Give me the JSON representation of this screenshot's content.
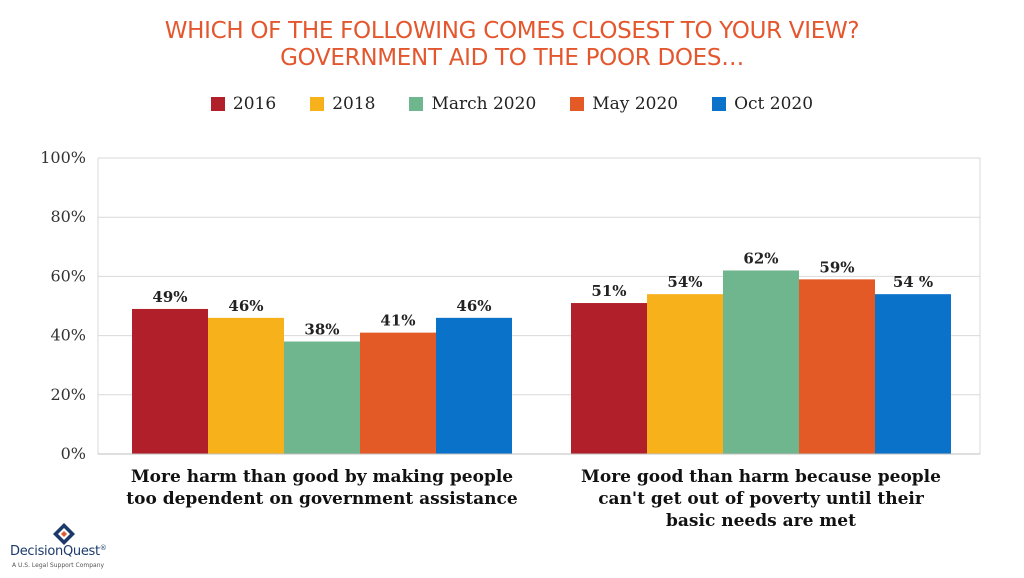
{
  "colors": {
    "title": "#e4572e",
    "series": [
      "#b11f2a",
      "#f7b11b",
      "#6fb58e",
      "#e35a27",
      "#0b72c9"
    ]
  },
  "chart_data": {
    "type": "bar",
    "title_line1": "WHICH OF THE FOLLOWING COMES CLOSEST TO YOUR VIEW?",
    "title_line2": "GOVERNMENT AID TO THE POOR DOES…",
    "categories": [
      "More harm than good by making people too dependent on government assistance",
      "More good than harm because people can't get out of poverty until their basic needs are met"
    ],
    "category_lines": [
      [
        "More harm than good by making people",
        "too dependent on government assistance"
      ],
      [
        "More good than harm because people",
        "can't get out of poverty until their",
        "basic needs are met"
      ]
    ],
    "series": [
      {
        "name": "2016",
        "values": [
          49,
          51
        ],
        "labels": [
          "49%",
          "51%"
        ]
      },
      {
        "name": "2018",
        "values": [
          46,
          54
        ],
        "labels": [
          "46%",
          "54%"
        ]
      },
      {
        "name": "March 2020",
        "values": [
          38,
          62
        ],
        "labels": [
          "38%",
          "62%"
        ]
      },
      {
        "name": "May 2020",
        "values": [
          41,
          59
        ],
        "labels": [
          "41%",
          "59%"
        ]
      },
      {
        "name": "Oct 2020",
        "values": [
          46,
          54
        ],
        "labels": [
          "46%",
          "54 %"
        ]
      }
    ],
    "yticks": [
      "0%",
      "20%",
      "40%",
      "60%",
      "80%",
      "100%"
    ],
    "ylim": [
      0,
      100
    ],
    "grid": true,
    "legend_position": "top"
  },
  "logo": {
    "name": "DecisionQuest",
    "trademark": "®",
    "tagline": "A U.S. Legal Support Company"
  }
}
